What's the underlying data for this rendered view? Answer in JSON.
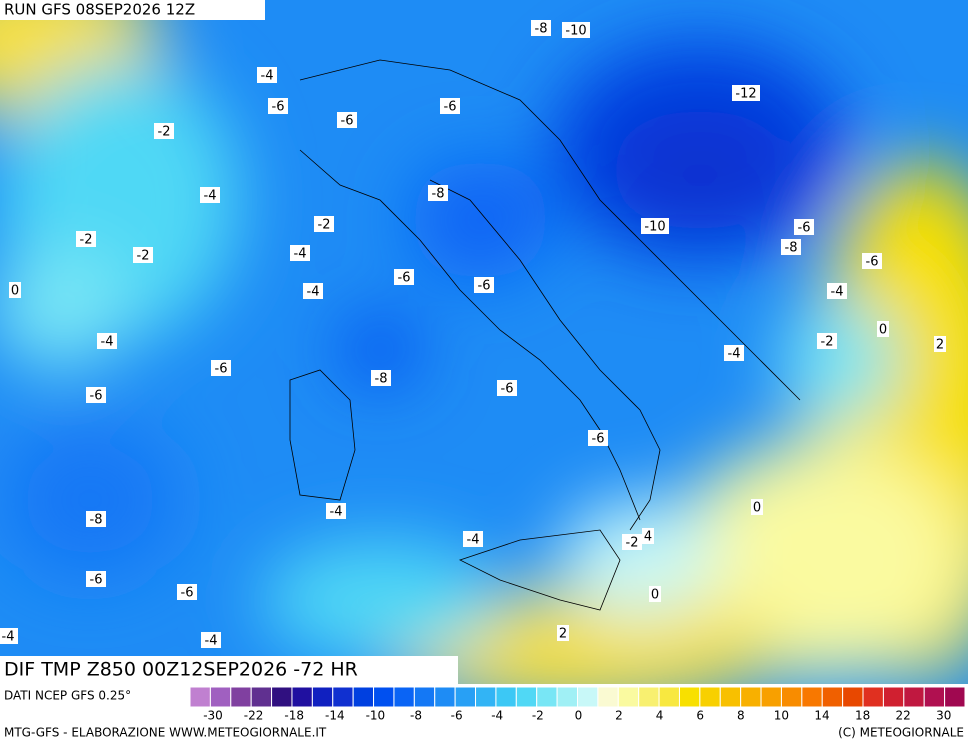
{
  "header": {
    "run": "RUN GFS 08SEP2026 12Z"
  },
  "map": {
    "contour_labels": [
      -8,
      -10,
      -4,
      -12,
      -6,
      -6,
      -6,
      -2,
      -4,
      -8,
      -2,
      -10,
      -6,
      -2,
      -8,
      -2,
      -4,
      -6,
      -6,
      -6,
      -4,
      -4,
      0,
      0,
      -4,
      -2,
      2,
      -4,
      -6,
      -8,
      -6,
      -6,
      -6,
      0,
      -8,
      -4,
      -4,
      -2,
      4,
      -6,
      -6,
      0,
      -4,
      -4,
      2
    ]
  },
  "footer": {
    "field": "DIF TMP Z850 00Z12SEP2026 -72 HR",
    "source": "DATI NCEP GFS 0.25°",
    "credit": "MTG-GFS - ELABORAZIONE WWW.METEOGIORNALE.IT",
    "copyright": "(C) METEOGIORNALE"
  },
  "colorbar": {
    "labels": [
      -30,
      -22,
      -18,
      -14,
      -10,
      -8,
      -6,
      -4,
      -2,
      0,
      2,
      4,
      6,
      8,
      10,
      14,
      18,
      22,
      30
    ],
    "colors": [
      "#c080d0",
      "#a060c0",
      "#8040a0",
      "#603090",
      "#301080",
      "#2010a0",
      "#1020c0",
      "#1030d0",
      "#0040e0",
      "#0050f0",
      "#0a64f5",
      "#1478f5",
      "#1e8cf5",
      "#28a0f5",
      "#32b4f5",
      "#3cc8f5",
      "#50d8f5",
      "#78e6f5",
      "#a0f0f5",
      "#c8f8f8",
      "#fafad2",
      "#fafaa0",
      "#f8f070",
      "#f8e840",
      "#f8e000",
      "#f8d000",
      "#f8c000",
      "#f8b000",
      "#f8a000",
      "#f88c00",
      "#f87800",
      "#f06000",
      "#e84800",
      "#e03020",
      "#d02030",
      "#c01840",
      "#b01050",
      "#a00850"
    ]
  }
}
